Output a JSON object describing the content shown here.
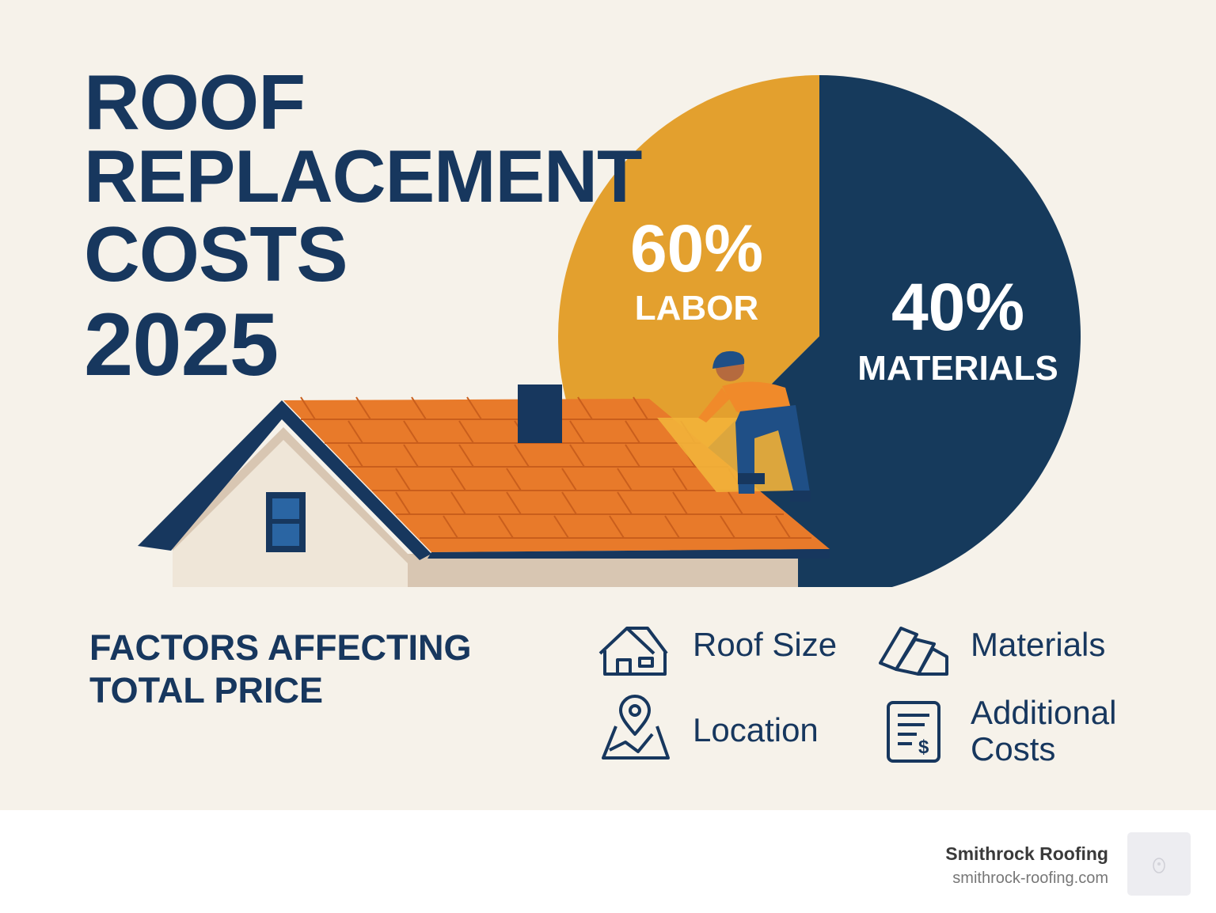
{
  "title": {
    "line1": "ROOF",
    "line2": "REPLACEMENT",
    "line3": "COSTS",
    "line4": "2025"
  },
  "chart_data": {
    "type": "pie",
    "title": "Roof Replacement Costs 2025",
    "slices": [
      {
        "label": "LABOR",
        "value": 60,
        "value_label": "60%",
        "color": "#e3a02e"
      },
      {
        "label": "MATERIALS",
        "value": 40,
        "value_label": "40%",
        "color": "#163a5c"
      }
    ]
  },
  "factors": {
    "heading_line1": "FACTORS AFFECTING",
    "heading_line2": "TOTAL PRICE",
    "items": [
      {
        "label": "Roof Size",
        "icon": "house-icon"
      },
      {
        "label": "Materials",
        "icon": "shingles-icon"
      },
      {
        "label": "Location",
        "icon": "map-pin-icon"
      },
      {
        "label_line1": "Additional",
        "label_line2": "Costs",
        "icon": "invoice-icon"
      }
    ]
  },
  "footer": {
    "brand": "Smithrock Roofing",
    "url": "smithrock-roofing.com"
  },
  "colors": {
    "navy": "#163a5c",
    "orange": "#e87a2a",
    "yellow": "#e3a02e",
    "bg": "#f6f2ea"
  }
}
